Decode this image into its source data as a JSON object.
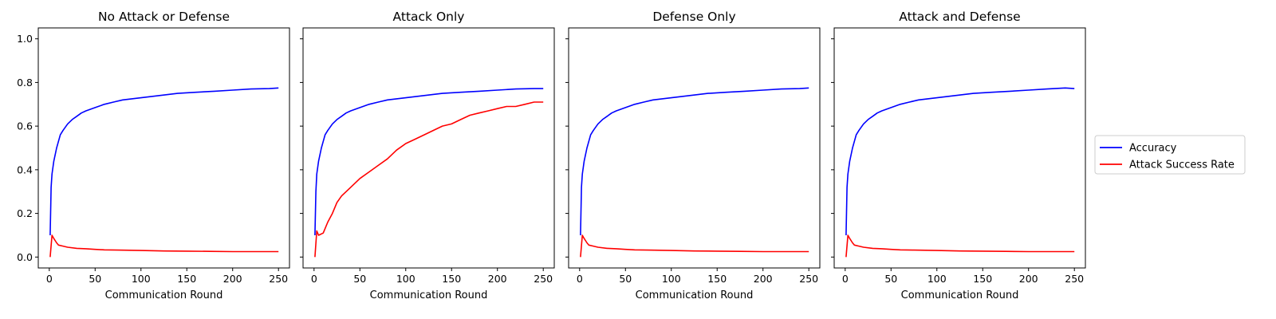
{
  "figure": {
    "x_axis_label": "Communication Round",
    "legend": {
      "placement": "right-center",
      "entries": [
        {
          "label": "Accuracy",
          "color": "#0000ff"
        },
        {
          "label": "Attack Success Rate",
          "color": "#ff0000"
        }
      ]
    }
  },
  "chart_data": [
    {
      "type": "line",
      "title": "No Attack or Defense",
      "xlabel": "Communication Round",
      "ylabel": "",
      "xlim": [
        -12,
        262
      ],
      "ylim": [
        -0.05,
        1.05
      ],
      "xticks": [
        0,
        50,
        100,
        150,
        200,
        250
      ],
      "yticks": [
        0.0,
        0.2,
        0.4,
        0.6,
        0.8,
        1.0
      ],
      "grid": false,
      "series": [
        {
          "name": "Accuracy",
          "color": "#0000ff",
          "x": [
            1,
            2,
            3,
            5,
            8,
            10,
            12,
            15,
            20,
            25,
            30,
            35,
            40,
            50,
            60,
            70,
            80,
            90,
            100,
            120,
            140,
            160,
            180,
            200,
            220,
            240,
            250
          ],
          "y": [
            0.1,
            0.32,
            0.38,
            0.44,
            0.5,
            0.53,
            0.56,
            0.58,
            0.61,
            0.63,
            0.645,
            0.66,
            0.67,
            0.685,
            0.7,
            0.71,
            0.72,
            0.725,
            0.73,
            0.74,
            0.75,
            0.755,
            0.76,
            0.765,
            0.77,
            0.772,
            0.775
          ]
        },
        {
          "name": "Attack Success Rate",
          "color": "#ff0000",
          "x": [
            1,
            3,
            5,
            8,
            10,
            15,
            20,
            30,
            40,
            50,
            60,
            75,
            100,
            125,
            150,
            175,
            200,
            225,
            250
          ],
          "y": [
            0.0,
            0.1,
            0.085,
            0.065,
            0.055,
            0.05,
            0.045,
            0.04,
            0.038,
            0.035,
            0.033,
            0.032,
            0.03,
            0.028,
            0.027,
            0.026,
            0.025,
            0.025,
            0.025
          ]
        }
      ]
    },
    {
      "type": "line",
      "title": "Attack Only",
      "xlabel": "Communication Round",
      "ylabel": "",
      "xlim": [
        -12,
        262
      ],
      "ylim": [
        -0.05,
        1.05
      ],
      "xticks": [
        0,
        50,
        100,
        150,
        200,
        250
      ],
      "yticks": [
        0.0,
        0.2,
        0.4,
        0.6,
        0.8,
        1.0
      ],
      "grid": false,
      "series": [
        {
          "name": "Accuracy",
          "color": "#0000ff",
          "x": [
            1,
            2,
            3,
            5,
            8,
            10,
            12,
            15,
            20,
            25,
            30,
            35,
            40,
            50,
            60,
            70,
            80,
            90,
            100,
            120,
            140,
            160,
            180,
            200,
            220,
            240,
            250
          ],
          "y": [
            0.1,
            0.3,
            0.38,
            0.44,
            0.5,
            0.53,
            0.56,
            0.58,
            0.61,
            0.63,
            0.645,
            0.66,
            0.67,
            0.685,
            0.7,
            0.71,
            0.72,
            0.725,
            0.73,
            0.74,
            0.75,
            0.755,
            0.76,
            0.765,
            0.77,
            0.772,
            0.772
          ]
        },
        {
          "name": "Attack Success Rate",
          "color": "#ff0000",
          "x": [
            1,
            3,
            5,
            10,
            15,
            20,
            25,
            30,
            40,
            50,
            60,
            70,
            80,
            90,
            100,
            110,
            120,
            130,
            140,
            150,
            160,
            170,
            180,
            190,
            200,
            210,
            220,
            230,
            240,
            250
          ],
          "y": [
            0.0,
            0.12,
            0.1,
            0.11,
            0.16,
            0.2,
            0.25,
            0.28,
            0.32,
            0.36,
            0.39,
            0.42,
            0.45,
            0.49,
            0.52,
            0.54,
            0.56,
            0.58,
            0.6,
            0.61,
            0.63,
            0.65,
            0.66,
            0.67,
            0.68,
            0.69,
            0.69,
            0.7,
            0.71,
            0.71
          ]
        }
      ]
    },
    {
      "type": "line",
      "title": "Defense Only",
      "xlabel": "Communication Round",
      "ylabel": "",
      "xlim": [
        -12,
        262
      ],
      "ylim": [
        -0.05,
        1.05
      ],
      "xticks": [
        0,
        50,
        100,
        150,
        200,
        250
      ],
      "yticks": [
        0.0,
        0.2,
        0.4,
        0.6,
        0.8,
        1.0
      ],
      "grid": false,
      "series": [
        {
          "name": "Accuracy",
          "color": "#0000ff",
          "x": [
            1,
            2,
            3,
            5,
            8,
            10,
            12,
            15,
            20,
            25,
            30,
            35,
            40,
            50,
            60,
            70,
            80,
            90,
            100,
            120,
            140,
            160,
            180,
            200,
            220,
            240,
            250
          ],
          "y": [
            0.1,
            0.32,
            0.38,
            0.44,
            0.5,
            0.53,
            0.56,
            0.58,
            0.61,
            0.63,
            0.645,
            0.66,
            0.67,
            0.685,
            0.7,
            0.71,
            0.72,
            0.725,
            0.73,
            0.74,
            0.75,
            0.755,
            0.76,
            0.765,
            0.77,
            0.772,
            0.775
          ]
        },
        {
          "name": "Attack Success Rate",
          "color": "#ff0000",
          "x": [
            1,
            3,
            5,
            8,
            10,
            15,
            20,
            30,
            40,
            50,
            60,
            75,
            100,
            125,
            150,
            175,
            200,
            225,
            250
          ],
          "y": [
            0.0,
            0.1,
            0.085,
            0.065,
            0.055,
            0.05,
            0.045,
            0.04,
            0.038,
            0.035,
            0.033,
            0.032,
            0.03,
            0.028,
            0.027,
            0.026,
            0.025,
            0.025,
            0.025
          ]
        }
      ]
    },
    {
      "type": "line",
      "title": "Attack and Defense",
      "xlabel": "Communication Round",
      "ylabel": "",
      "xlim": [
        -12,
        262
      ],
      "ylim": [
        -0.05,
        1.05
      ],
      "xticks": [
        0,
        50,
        100,
        150,
        200,
        250
      ],
      "yticks": [
        0.0,
        0.2,
        0.4,
        0.6,
        0.8,
        1.0
      ],
      "grid": false,
      "series": [
        {
          "name": "Accuracy",
          "color": "#0000ff",
          "x": [
            1,
            2,
            3,
            5,
            8,
            10,
            12,
            15,
            20,
            25,
            30,
            35,
            40,
            50,
            60,
            70,
            80,
            90,
            100,
            120,
            140,
            160,
            180,
            200,
            220,
            240,
            250
          ],
          "y": [
            0.1,
            0.32,
            0.38,
            0.44,
            0.5,
            0.53,
            0.56,
            0.58,
            0.61,
            0.63,
            0.645,
            0.66,
            0.67,
            0.685,
            0.7,
            0.71,
            0.72,
            0.725,
            0.73,
            0.74,
            0.75,
            0.755,
            0.76,
            0.765,
            0.77,
            0.775,
            0.772
          ]
        },
        {
          "name": "Attack Success Rate",
          "color": "#ff0000",
          "x": [
            1,
            3,
            5,
            8,
            10,
            15,
            20,
            30,
            40,
            50,
            60,
            75,
            100,
            125,
            150,
            175,
            200,
            225,
            250
          ],
          "y": [
            0.0,
            0.1,
            0.085,
            0.065,
            0.055,
            0.05,
            0.045,
            0.04,
            0.038,
            0.035,
            0.033,
            0.032,
            0.03,
            0.028,
            0.027,
            0.026,
            0.025,
            0.025,
            0.025
          ]
        }
      ]
    }
  ]
}
